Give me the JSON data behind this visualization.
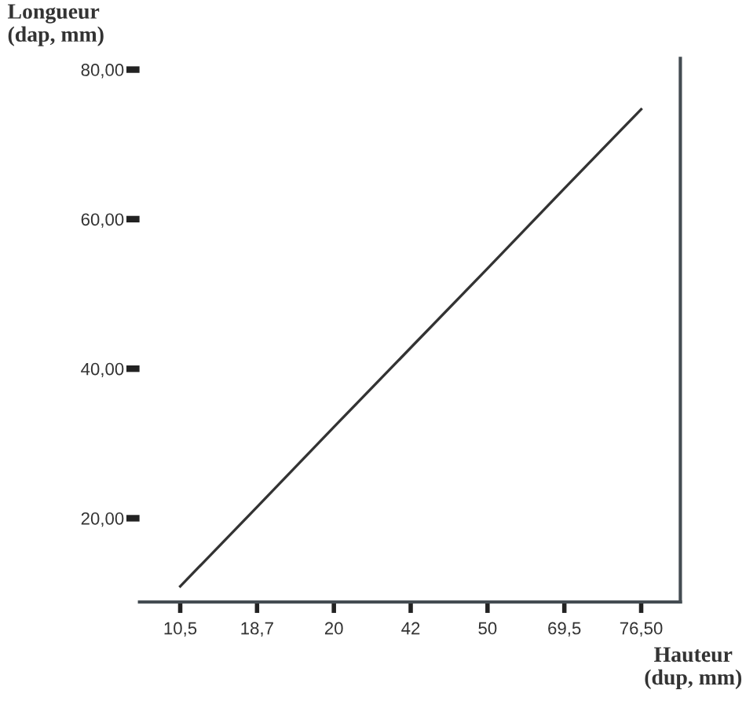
{
  "chart_data": {
    "type": "line",
    "xlabel": "Hauteur\n(dup, mm)",
    "ylabel": "Longueur\n(dap, mm)",
    "categories": [
      "10,5",
      "18,7",
      "20",
      "42",
      "50",
      "69,5",
      "76,50"
    ],
    "series": [
      {
        "color": "#333333",
        "values": [
          10.9,
          21.5,
          32.2,
          42.8,
          53.4,
          64.1,
          74.7
        ]
      }
    ],
    "ylim": [
      8.8,
      81.5
    ],
    "yticks": [
      {
        "value": 20,
        "label": "20,00"
      },
      {
        "value": 40,
        "label": "40,00"
      },
      {
        "value": 60,
        "label": "60,00"
      },
      {
        "value": 80,
        "label": "80,00"
      }
    ],
    "grid": false,
    "legend": false,
    "marker": "none",
    "line_style": "solid"
  }
}
